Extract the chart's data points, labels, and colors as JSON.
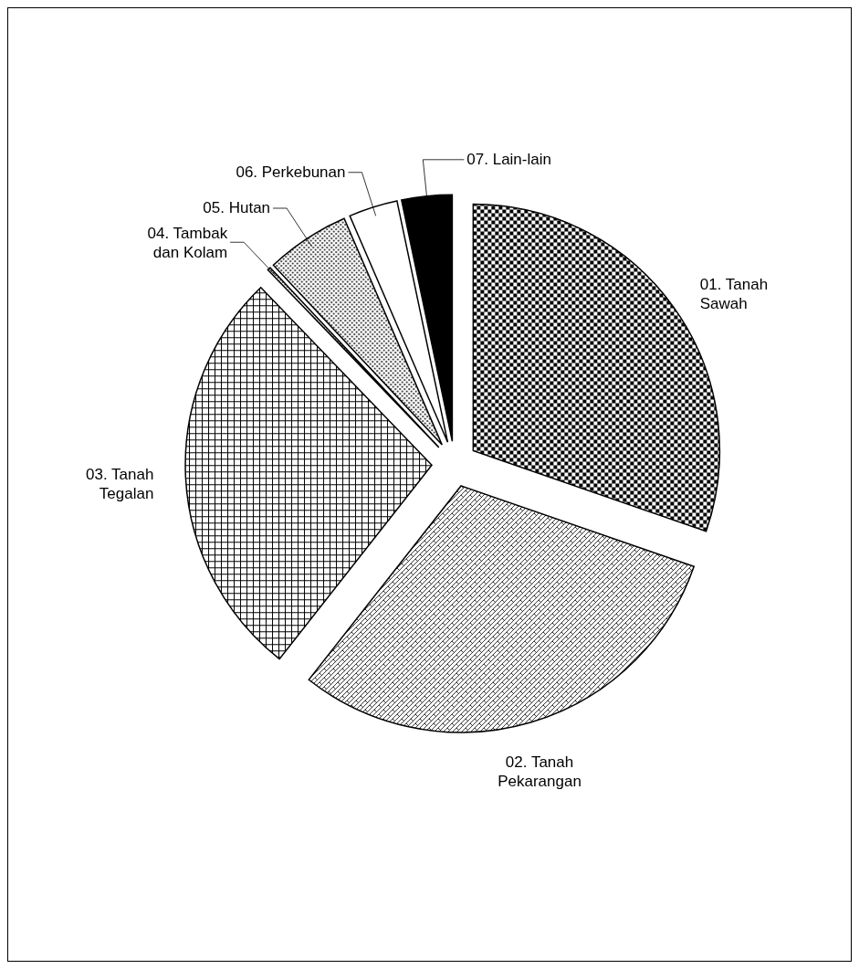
{
  "chart_data": {
    "type": "pie",
    "categories": [
      "01. Tanah Sawah",
      "02. Tanah Pekarangan",
      "03. Tanah Tegalan",
      "04. Tambak dan Kolam",
      "05. Hutan",
      "06. Perkebunan",
      "07. Lain-lain"
    ],
    "values": [
      30.3,
      30.3,
      27.2,
      0.2,
      5.5,
      3.2,
      3.3
    ],
    "colors": [
      "#000000",
      "#000000",
      "#000000",
      "#000000",
      "#000000",
      "#ffffff",
      "#000000"
    ]
  }
}
